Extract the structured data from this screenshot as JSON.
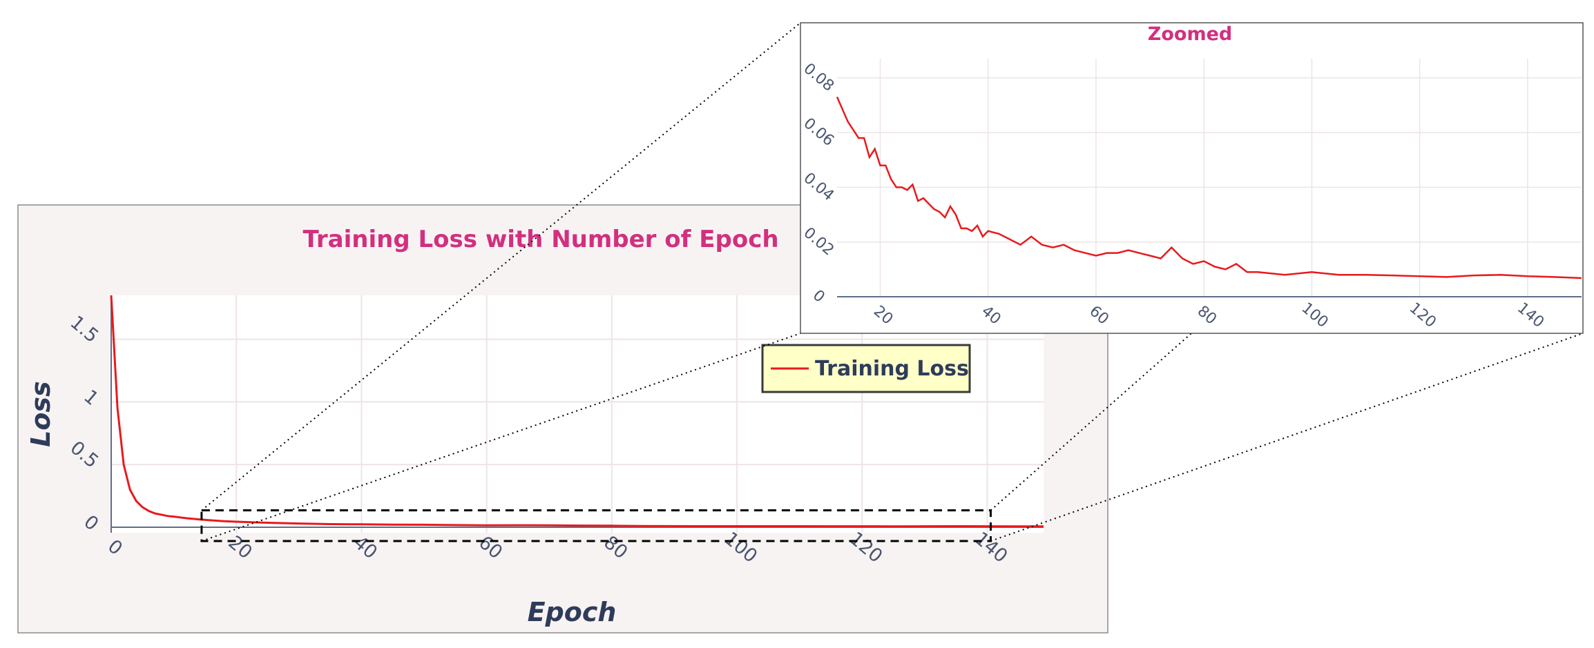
{
  "chart_data": [
    {
      "type": "line",
      "title": "Training Loss with Number of Epoch",
      "xlabel": "Epoch",
      "ylabel": "Loss",
      "xlim": [
        0,
        149
      ],
      "ylim": [
        0,
        1.85
      ],
      "x_ticks": [
        "0",
        "20",
        "40",
        "60",
        "80",
        "100",
        "120",
        "140"
      ],
      "y_ticks": [
        "0",
        "0.5",
        "1",
        "1.5"
      ],
      "grid": true,
      "legend_position": "top-right",
      "series": [
        {
          "name": "Training Loss",
          "color": "#e8191c",
          "x": [
            0,
            1,
            2,
            3,
            4,
            5,
            6,
            7,
            8,
            9,
            10,
            11,
            12,
            14,
            16,
            18,
            20,
            25,
            30,
            35,
            40,
            45,
            50,
            55,
            60,
            65,
            70,
            75,
            80,
            85,
            90,
            95,
            100,
            105,
            110,
            115,
            120,
            125,
            130,
            135,
            140,
            145,
            149
          ],
          "y": [
            1.85,
            0.95,
            0.5,
            0.3,
            0.21,
            0.16,
            0.13,
            0.11,
            0.1,
            0.09,
            0.085,
            0.078,
            0.072,
            0.063,
            0.055,
            0.048,
            0.044,
            0.036,
            0.03,
            0.025,
            0.023,
            0.021,
            0.02,
            0.017,
            0.015,
            0.016,
            0.015,
            0.013,
            0.012,
            0.01,
            0.009,
            0.008,
            0.0085,
            0.008,
            0.008,
            0.0075,
            0.0078,
            0.007,
            0.0075,
            0.008,
            0.0075,
            0.0072,
            0.007
          ]
        }
      ],
      "zoom_region": {
        "x": [
          15,
          140
        ],
        "y": [
          0,
          0.3
        ]
      }
    },
    {
      "type": "line",
      "title": "Zoomed",
      "xlim": [
        12,
        150
      ],
      "ylim": [
        0,
        0.087
      ],
      "x_ticks": [
        "20",
        "40",
        "60",
        "80",
        "100",
        "120",
        "140"
      ],
      "y_ticks": [
        "0",
        "0.02",
        "0.04",
        "0.06",
        "0.08"
      ],
      "grid": true,
      "series": [
        {
          "color": "#e8191c",
          "x": [
            12,
            14,
            16,
            17,
            18,
            19,
            20,
            21,
            22,
            23,
            24,
            25,
            26,
            27,
            28,
            29,
            30,
            31,
            32,
            33,
            34,
            35,
            36,
            37,
            38,
            39,
            40,
            42,
            44,
            46,
            48,
            50,
            52,
            54,
            56,
            58,
            60,
            62,
            64,
            66,
            68,
            70,
            72,
            74,
            76,
            78,
            80,
            82,
            84,
            86,
            88,
            90,
            95,
            100,
            105,
            110,
            115,
            120,
            125,
            130,
            135,
            140,
            145,
            150
          ],
          "y": [
            0.073,
            0.064,
            0.058,
            0.058,
            0.051,
            0.054,
            0.048,
            0.048,
            0.043,
            0.04,
            0.04,
            0.039,
            0.041,
            0.035,
            0.036,
            0.034,
            0.032,
            0.031,
            0.029,
            0.033,
            0.03,
            0.025,
            0.025,
            0.024,
            0.026,
            0.022,
            0.024,
            0.023,
            0.021,
            0.019,
            0.022,
            0.019,
            0.018,
            0.019,
            0.017,
            0.016,
            0.015,
            0.016,
            0.016,
            0.017,
            0.016,
            0.015,
            0.014,
            0.018,
            0.014,
            0.012,
            0.013,
            0.011,
            0.01,
            0.012,
            0.009,
            0.009,
            0.008,
            0.009,
            0.008,
            0.008,
            0.0078,
            0.0075,
            0.0072,
            0.0078,
            0.008,
            0.0075,
            0.0072,
            0.0068
          ]
        }
      ]
    }
  ]
}
